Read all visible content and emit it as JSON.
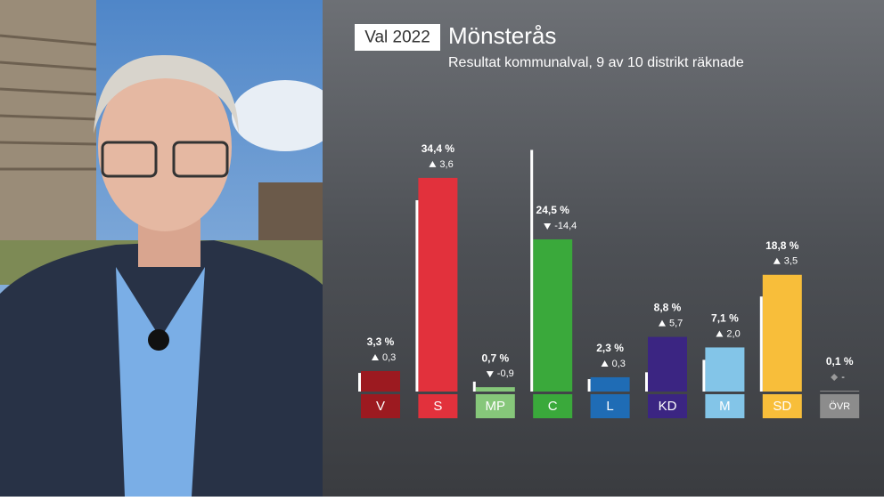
{
  "chart_data": {
    "type": "bar",
    "badge": "Val 2022",
    "title": "Mönsterås",
    "subtitle": "Resultat kommunalval, 9 av 10 distrikt räknade",
    "categories": [
      "V",
      "S",
      "MP",
      "C",
      "L",
      "KD",
      "M",
      "SD",
      "ÖVR"
    ],
    "colors": [
      "#9c1a20",
      "#e2313c",
      "#86c77a",
      "#3aa93b",
      "#1f6cb5",
      "#3b2582",
      "#83c5e8",
      "#f8be3a",
      "#8c8c8c"
    ],
    "values": [
      3.3,
      34.4,
      0.7,
      24.5,
      2.3,
      8.8,
      7.1,
      18.8,
      0.1
    ],
    "value_labels": [
      "3,3 %",
      "34,4 %",
      "0,7 %",
      "24,5 %",
      "2,3 %",
      "8,8 %",
      "7,1 %",
      "18,8 %",
      "0,1 %"
    ],
    "changes": [
      0.3,
      3.6,
      -0.9,
      -14.4,
      0.3,
      5.7,
      2.0,
      3.5,
      null
    ],
    "change_labels": [
      "0,3",
      "3,6",
      "-0,9",
      "-14,4",
      "0,3",
      "5,7",
      "2,0",
      "3,5",
      "-"
    ],
    "previous_values": [
      3.0,
      30.8,
      1.6,
      38.9,
      2.0,
      3.1,
      5.1,
      15.3,
      null
    ]
  }
}
